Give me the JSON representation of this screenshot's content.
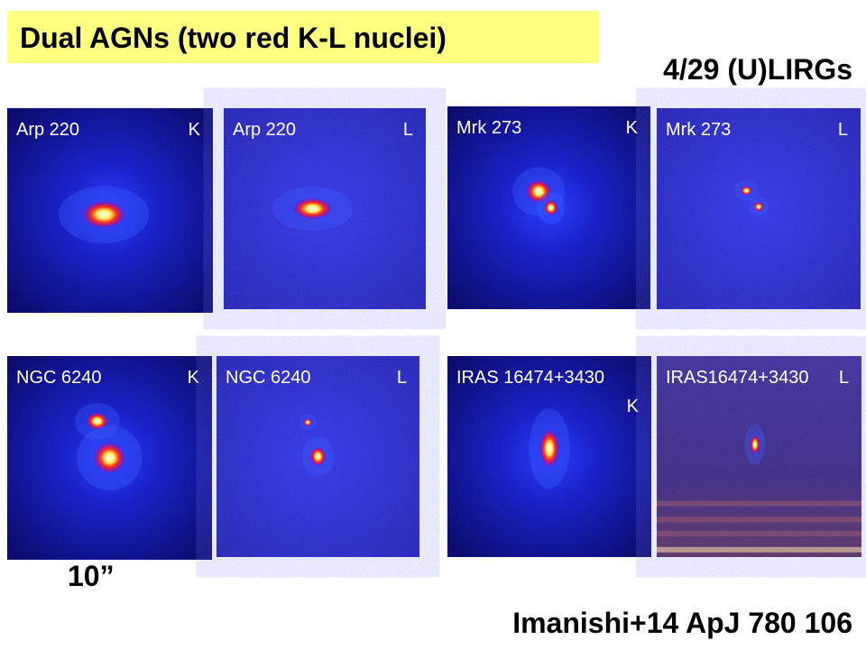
{
  "header": {
    "title": "Dual AGNs (two red K-L nuclei)",
    "count": "4/29 (U)LIRGs"
  },
  "panels": [
    {
      "name": "Arp 220",
      "band": "K"
    },
    {
      "name": "Arp 220",
      "band": "L"
    },
    {
      "name": "Mrk 273",
      "band": "K"
    },
    {
      "name": "Mrk 273",
      "band": "L"
    },
    {
      "name": "NGC 6240",
      "band": "K"
    },
    {
      "name": "NGC 6240",
      "band": "L"
    },
    {
      "name": "IRAS 16474+3430",
      "band": "K"
    },
    {
      "name": "IRAS16474+3430",
      "band": "L"
    }
  ],
  "scale_label": "10”",
  "reference": "Imanishi+14 ApJ 780 106"
}
